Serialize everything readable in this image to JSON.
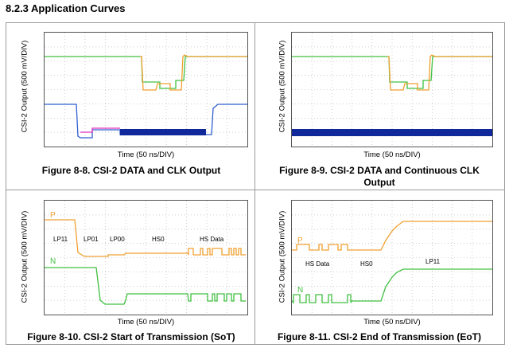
{
  "section_title": "8.2.3 Application Curves",
  "panels": [
    {
      "caption": "Figure 8-8. CSI-2 DATA and CLK Output",
      "xlabel": "Time (50 ns/DIV)",
      "ylabel": "CSI-2 Output (500 mV/DIV)",
      "annotations": []
    },
    {
      "caption": "Figure 8-9. CSI-2 DATA and Continuous CLK Output",
      "xlabel": "Time (50 ns/DIV)",
      "ylabel": "CSI-2 Output (500 mV/DIV)",
      "annotations": []
    },
    {
      "caption": "Figure 8-10. CSI-2 Start of Transmission (SoT)",
      "xlabel": "Time (50 ns/DIV)",
      "ylabel": "CSI-2 Output (500 mV/DIV)",
      "annotations": [
        {
          "text": "P",
          "color": "#f0a030",
          "big": true
        },
        {
          "text": "N",
          "color": "#40c040",
          "big": true
        },
        {
          "text": "LP11",
          "color": "#000000"
        },
        {
          "text": "LP01",
          "color": "#000000"
        },
        {
          "text": "LP00",
          "color": "#000000"
        },
        {
          "text": "HS0",
          "color": "#000000"
        },
        {
          "text": "HS Data",
          "color": "#000000"
        }
      ]
    },
    {
      "caption": "Figure 8-11. CSI-2 End of Transmission (EoT)",
      "xlabel": "Time (50 ns/DIV)",
      "ylabel": "CSI-2 Output (500 mV/DIV)",
      "annotations": [
        {
          "text": "P",
          "color": "#f0a030",
          "big": true
        },
        {
          "text": "N",
          "color": "#40c040",
          "big": true
        },
        {
          "text": "HS Data",
          "color": "#000000"
        },
        {
          "text": "HS0",
          "color": "#000000"
        },
        {
          "text": "LP11",
          "color": "#000000"
        }
      ]
    }
  ],
  "chart_data": [
    {
      "type": "line",
      "grid": "dotted 10x8 divisions",
      "series": [],
      "colors": [
        "#40c040",
        "#f0a030",
        "#3060d0",
        "#e030c0",
        "#10289a"
      ]
    },
    {
      "type": "line",
      "grid": "dotted 10x8 divisions",
      "series": [],
      "colors": [
        "#40c040",
        "#f0a030",
        "#10289a"
      ]
    },
    {
      "type": "line",
      "grid": "dotted 10x8 divisions",
      "series": [],
      "colors": [
        "#f0a030",
        "#40c040"
      ]
    },
    {
      "type": "line",
      "grid": "dotted 10x8 divisions",
      "series": [],
      "colors": [
        "#f0a030",
        "#40c040"
      ]
    }
  ]
}
